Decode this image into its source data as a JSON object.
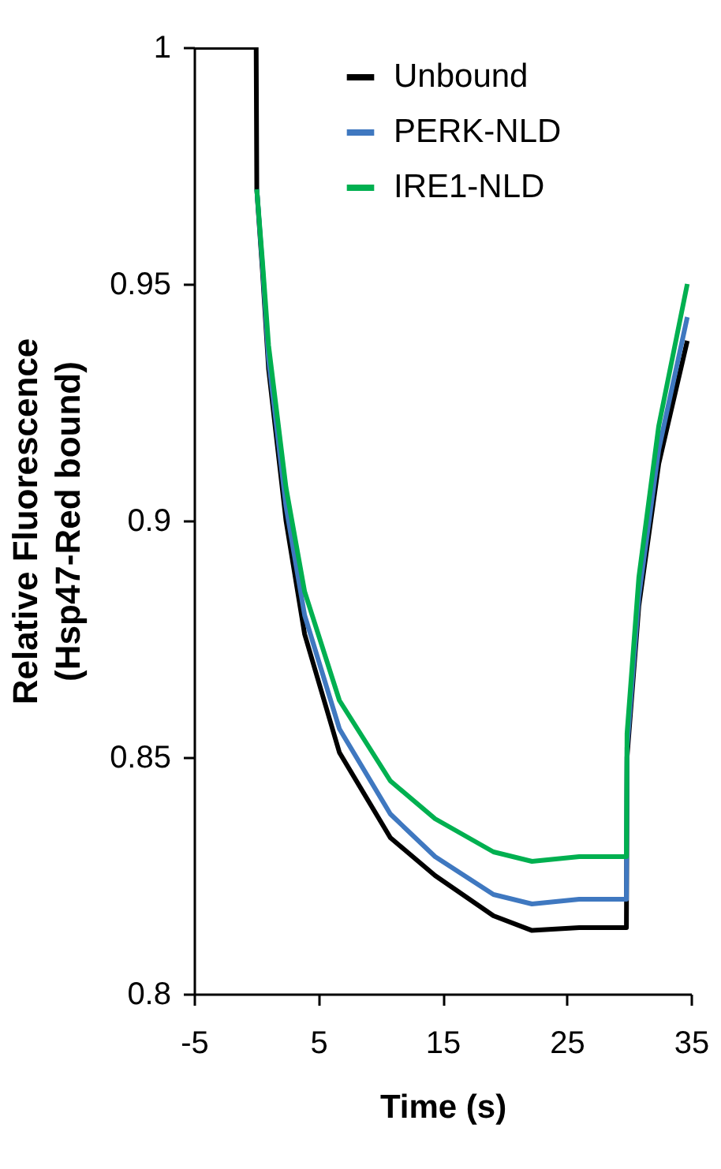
{
  "chart_data": {
    "type": "line",
    "xlabel": "Time (s)",
    "ylabel": "Relative Fluorescence\n(Hsp47-Red bound)",
    "x": [
      -5,
      0,
      0.05,
      0.5,
      1.0,
      2.4,
      3.9,
      6.7,
      10.8,
      14.4,
      19.1,
      22.2,
      26,
      29.8,
      29.85,
      30.8,
      32.4,
      34.7
    ],
    "series": [
      {
        "name": "Unbound",
        "color": "#000000",
        "values": [
          1,
          1,
          0.97,
          0.953,
          0.932,
          0.9,
          0.876,
          0.851,
          0.833,
          0.825,
          0.8165,
          0.8134,
          0.814,
          0.814,
          0.85,
          0.882,
          0.912,
          0.938
        ]
      },
      {
        "name": "PERK-NLD",
        "color": "#3f78c0",
        "values": [
          null,
          null,
          0.97,
          0.954,
          0.934,
          0.903,
          0.88,
          0.856,
          0.838,
          0.829,
          0.821,
          0.819,
          0.82,
          0.82,
          0.852,
          0.884,
          0.915,
          0.943
        ]
      },
      {
        "name": "IRE1-NLD",
        "color": "#00b050",
        "values": [
          null,
          null,
          0.97,
          0.955,
          0.937,
          0.907,
          0.885,
          0.862,
          0.845,
          0.837,
          0.83,
          0.828,
          0.829,
          0.829,
          0.855,
          0.888,
          0.92,
          0.95
        ]
      }
    ],
    "xlim": [
      -5,
      35
    ],
    "xticks": [
      -5,
      5,
      15,
      25,
      35
    ],
    "ylim": [
      0.8,
      1
    ],
    "yticks": [
      0.8,
      0.85,
      0.9,
      0.95,
      1
    ],
    "legend": "top",
    "grid": false,
    "marker": "none",
    "line_style": "solid"
  }
}
